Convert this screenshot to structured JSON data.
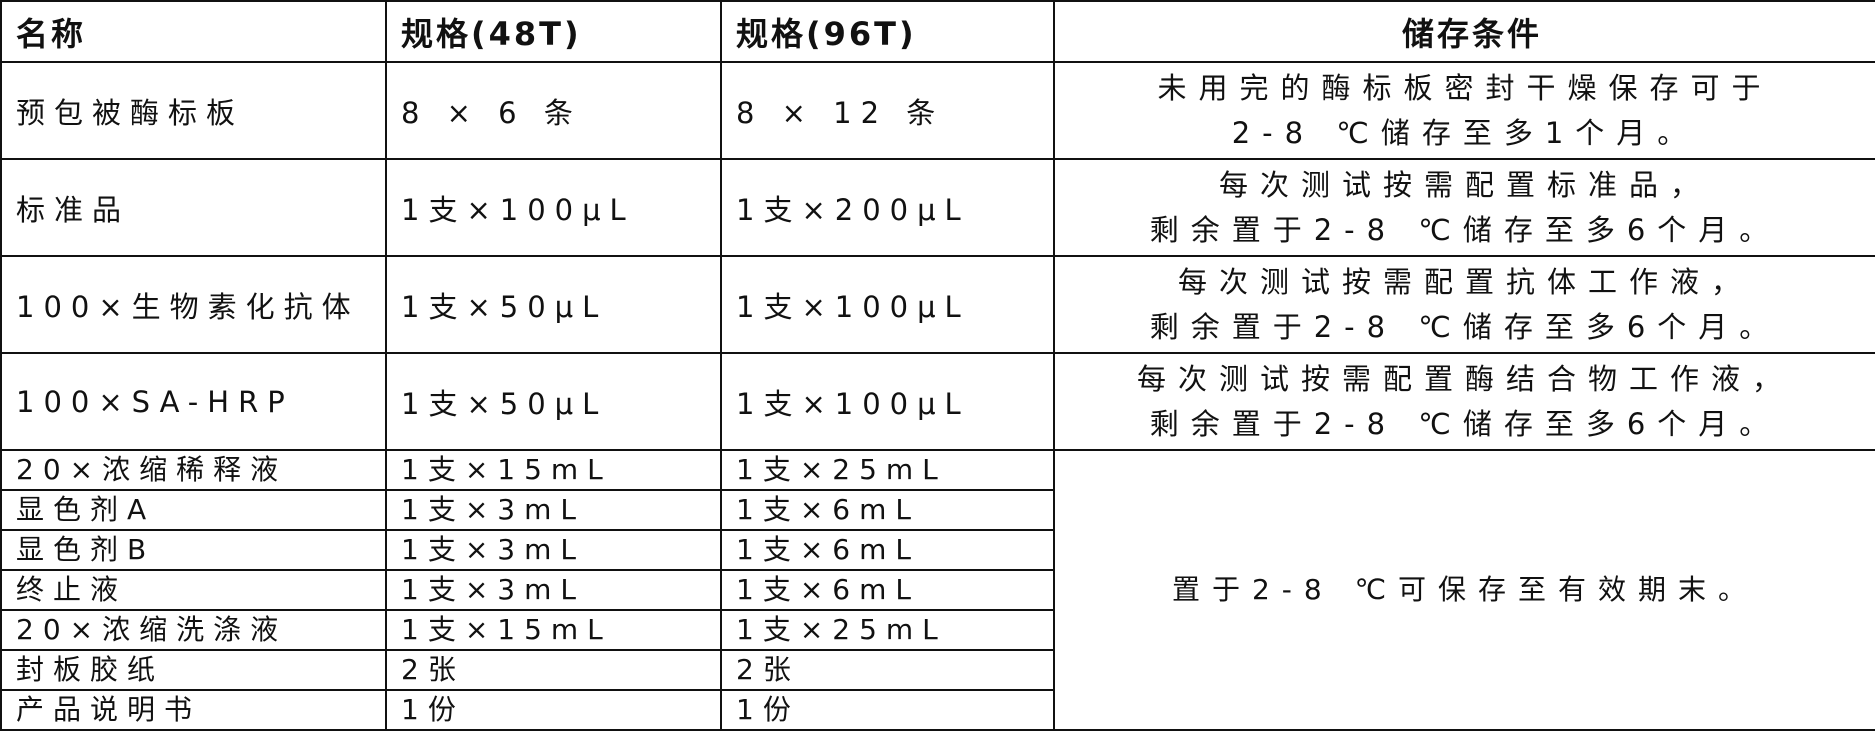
{
  "headers": [
    "名称",
    "规格(48T)",
    "规格(96T)",
    "储存条件"
  ],
  "rows": [
    {
      "name": "预包被酶标板",
      "spec48": "8 × 6 条",
      "spec96": "8 × 12 条",
      "storage": [
        "未用完的酶标板密封干燥保存可于",
        "2-8 ℃储存至多1个月。"
      ]
    },
    {
      "name": "标准品",
      "spec48": "1支×100μL",
      "spec96": "1支×200μL",
      "storage": [
        "每次测试按需配置标准品，",
        "剩余置于2-8 ℃储存至多6个月。"
      ]
    },
    {
      "name": "100×生物素化抗体",
      "spec48": "1支×50μL",
      "spec96": "1支×100μL",
      "storage": [
        "每次测试按需配置抗体工作液，",
        "剩余置于2-8 ℃储存至多6个月。"
      ]
    },
    {
      "name": "100×SA-HRP",
      "spec48": "1支×50μL",
      "spec96": "1支×100μL",
      "storage": [
        "每次测试按需配置酶结合物工作液，",
        "剩余置于2-8 ℃储存至多6个月。"
      ]
    },
    {
      "name": "20×浓缩稀释液",
      "spec48": "1支×15mL",
      "spec96": "1支×25mL"
    },
    {
      "name": "显色剂A",
      "spec48": "1支×3mL",
      "spec96": "1支×6mL"
    },
    {
      "name": "显色剂B",
      "spec48": "1支×3mL",
      "spec96": "1支×6mL"
    },
    {
      "name": "终止液",
      "spec48": "1支×3mL",
      "spec96": "1支×6mL"
    },
    {
      "name": "20×浓缩洗涤液",
      "spec48": "1支×15mL",
      "spec96": "1支×25mL"
    },
    {
      "name": "封板胶纸",
      "spec48": "2张",
      "spec96": "2张"
    },
    {
      "name": "产品说明书",
      "spec48": "1份",
      "spec96": "1份"
    }
  ],
  "shared_storage": "置于2-8 ℃可保存至有效期末。"
}
